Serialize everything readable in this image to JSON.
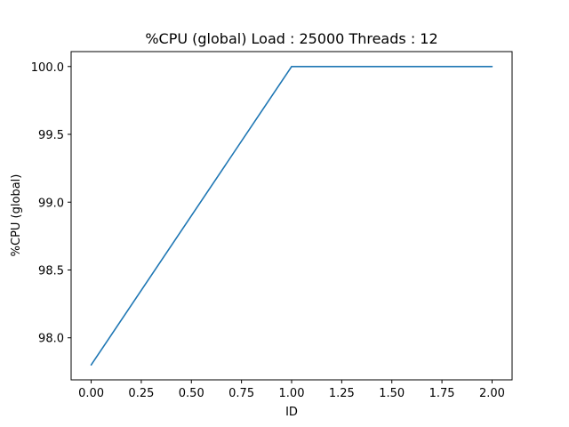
{
  "chart_data": {
    "type": "line",
    "title": "%CPU (global) Load : 25000 Threads : 12",
    "xlabel": "ID",
    "ylabel": "%CPU (global)",
    "xlim": [
      -0.1,
      2.1
    ],
    "ylim": [
      97.69,
      100.11
    ],
    "xticks": [
      0.0,
      0.25,
      0.5,
      0.75,
      1.0,
      1.25,
      1.5,
      1.75,
      2.0
    ],
    "xtick_labels": [
      "0.00",
      "0.25",
      "0.50",
      "0.75",
      "1.00",
      "1.25",
      "1.50",
      "1.75",
      "2.00"
    ],
    "yticks": [
      98.0,
      98.5,
      99.0,
      99.5,
      100.0
    ],
    "ytick_labels": [
      "98.0",
      "98.5",
      "99.0",
      "99.5",
      "100.0"
    ],
    "grid": false,
    "series": [
      {
        "x": [
          0,
          1,
          2
        ],
        "y": [
          97.8,
          100.0,
          100.0
        ],
        "color": "#1f77b4"
      }
    ]
  }
}
